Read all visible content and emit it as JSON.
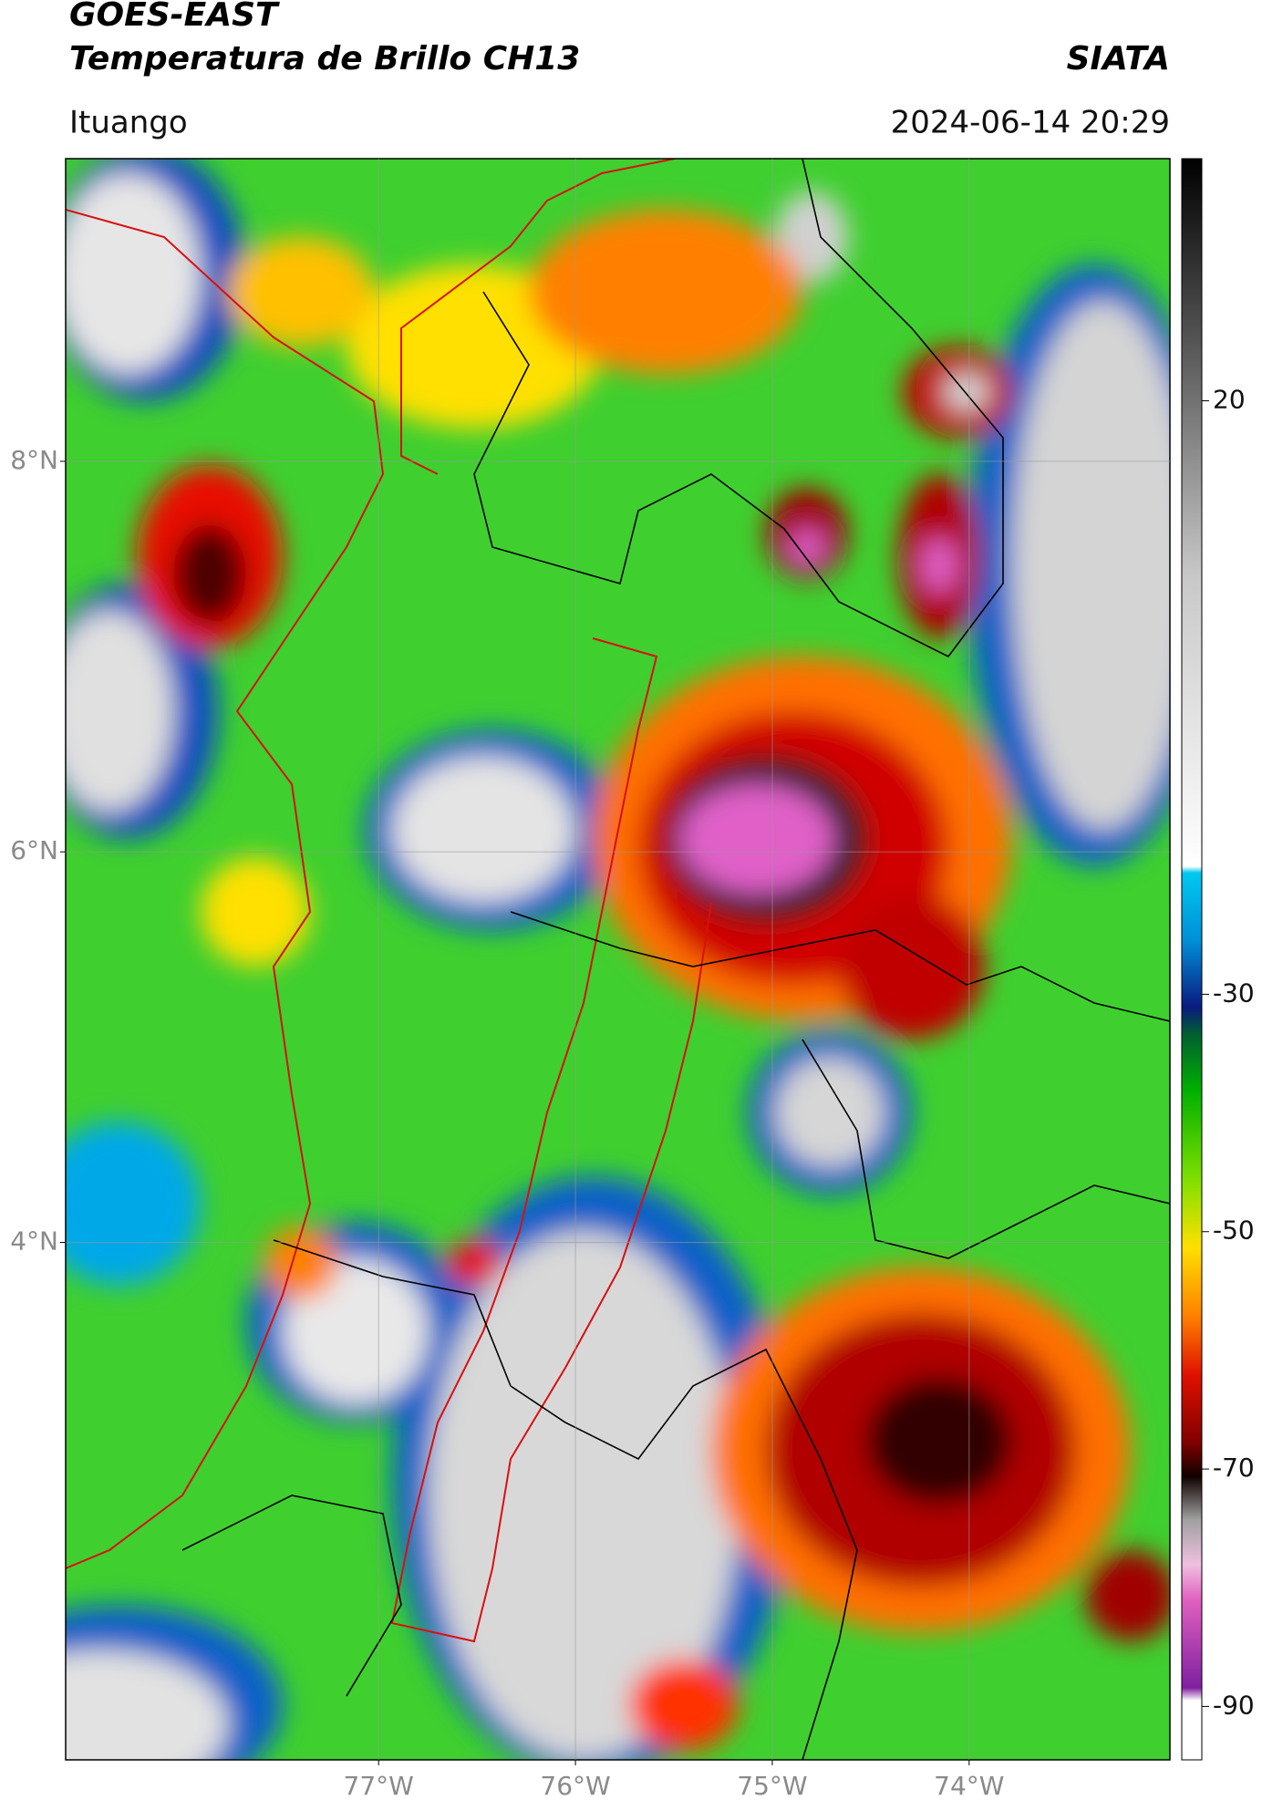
{
  "header": {
    "satellite": "GOES-EAST",
    "product": "Temperatura de Brillo CH13",
    "source": "SIATA",
    "region": "Ituango",
    "timestamp": "2024-06-14 20:29"
  },
  "map": {
    "xlim": [
      -78.59,
      -72.98
    ],
    "ylim": [
      1.35,
      9.55
    ],
    "xticks": [
      {
        "value": -77,
        "label": "77°W"
      },
      {
        "value": -76,
        "label": "76°W"
      },
      {
        "value": -75,
        "label": "75°W"
      },
      {
        "value": -74,
        "label": "74°W"
      }
    ],
    "yticks": [
      {
        "value": 8,
        "label": "8°N"
      },
      {
        "value": 6,
        "label": "6°N"
      },
      {
        "value": 4,
        "label": "4°N"
      }
    ],
    "grid": true
  },
  "colorbar": {
    "lim": [
      -94.5,
      40.4
    ],
    "ticks": [
      20,
      -30,
      -50,
      -70,
      -90
    ]
  }
}
